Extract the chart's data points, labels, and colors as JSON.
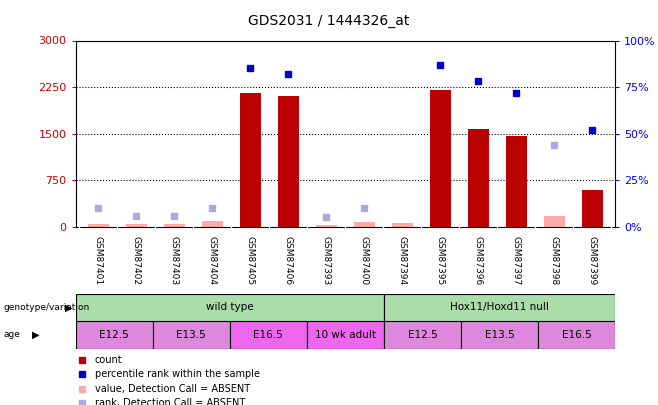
{
  "title": "GDS2031 / 1444326_at",
  "samples": [
    "GSM87401",
    "GSM87402",
    "GSM87403",
    "GSM87404",
    "GSM87405",
    "GSM87406",
    "GSM87393",
    "GSM87400",
    "GSM87394",
    "GSM87395",
    "GSM87396",
    "GSM87397",
    "GSM87398",
    "GSM87399"
  ],
  "count_values": [
    null,
    null,
    null,
    null,
    2150,
    2100,
    null,
    null,
    null,
    2200,
    1570,
    1460,
    null,
    600
  ],
  "count_absent_values": [
    40,
    50,
    50,
    90,
    null,
    null,
    30,
    70,
    55,
    null,
    null,
    null,
    180,
    null
  ],
  "rank_values_pct": [
    null,
    null,
    null,
    null,
    85,
    82,
    null,
    null,
    null,
    87,
    78,
    72,
    null,
    52
  ],
  "rank_absent_pct": [
    10,
    6,
    6,
    10,
    null,
    null,
    5,
    10,
    null,
    null,
    null,
    null,
    44,
    null
  ],
  "left_ylim": [
    0,
    3000
  ],
  "right_ylim": [
    0,
    100
  ],
  "left_yticks": [
    0,
    750,
    1500,
    2250,
    3000
  ],
  "right_yticks": [
    0,
    25,
    50,
    75,
    100
  ],
  "genotype_groups": [
    {
      "label": "wild type",
      "start": 0,
      "end": 8,
      "color": "#aaddaa"
    },
    {
      "label": "Hox11/Hoxd11 null",
      "start": 8,
      "end": 14,
      "color": "#aaddaa"
    }
  ],
  "age_groups": [
    {
      "label": "E12.5",
      "start": 0,
      "end": 2,
      "color": "#dd88dd"
    },
    {
      "label": "E13.5",
      "start": 2,
      "end": 4,
      "color": "#dd88dd"
    },
    {
      "label": "E16.5",
      "start": 4,
      "end": 6,
      "color": "#ee66ee"
    },
    {
      "label": "10 wk adult",
      "start": 6,
      "end": 8,
      "color": "#ee66ee"
    },
    {
      "label": "E12.5",
      "start": 8,
      "end": 10,
      "color": "#dd88dd"
    },
    {
      "label": "E13.5",
      "start": 10,
      "end": 12,
      "color": "#dd88dd"
    },
    {
      "label": "E16.5",
      "start": 12,
      "end": 14,
      "color": "#dd88dd"
    }
  ],
  "bar_color": "#BB0000",
  "absent_bar_color": "#FFAAAA",
  "rank_color": "#0000CC",
  "rank_absent_color": "#AAAADD",
  "legend_items": [
    {
      "label": "count",
      "color": "#BB0000"
    },
    {
      "label": "percentile rank within the sample",
      "color": "#0000CC"
    },
    {
      "label": "value, Detection Call = ABSENT",
      "color": "#FFAAAA"
    },
    {
      "label": "rank, Detection Call = ABSENT",
      "color": "#AAAADD"
    }
  ]
}
